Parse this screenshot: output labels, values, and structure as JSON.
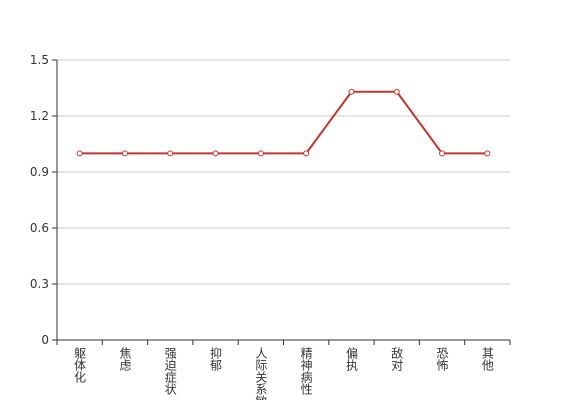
{
  "chart_data": {
    "type": "line",
    "categories": [
      "躯体化",
      "焦虑",
      "强迫症状",
      "抑郁",
      "人际关系敏感",
      "精神病性",
      "偏执",
      "敌对",
      "恐怖",
      "其他"
    ],
    "values": [
      1,
      1,
      1,
      1,
      1,
      1,
      1.33,
      1.33,
      1,
      1
    ],
    "color": "#c23531",
    "ylim": [
      0,
      1.5
    ],
    "yticks": [
      0,
      0.3,
      0.6,
      0.9,
      1.2,
      1.5
    ],
    "grid": true
  }
}
